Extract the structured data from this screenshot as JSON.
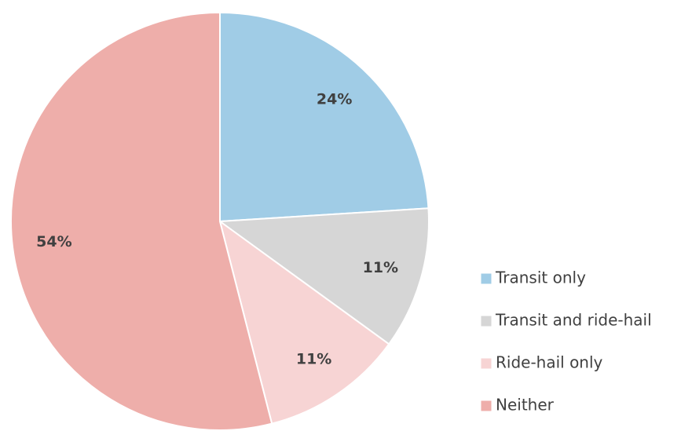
{
  "chart_data": {
    "type": "pie",
    "categories": [
      "Transit only",
      "Transit and ride-hail",
      "Ride-hail only",
      "Neither"
    ],
    "values": [
      24,
      11,
      11,
      54
    ],
    "value_labels": [
      "24%",
      "11%",
      "11%",
      "54%"
    ],
    "colors": [
      "#a0cce6",
      "#d6d6d6",
      "#f7d4d4",
      "#eeaeaa"
    ],
    "legend": "right"
  }
}
